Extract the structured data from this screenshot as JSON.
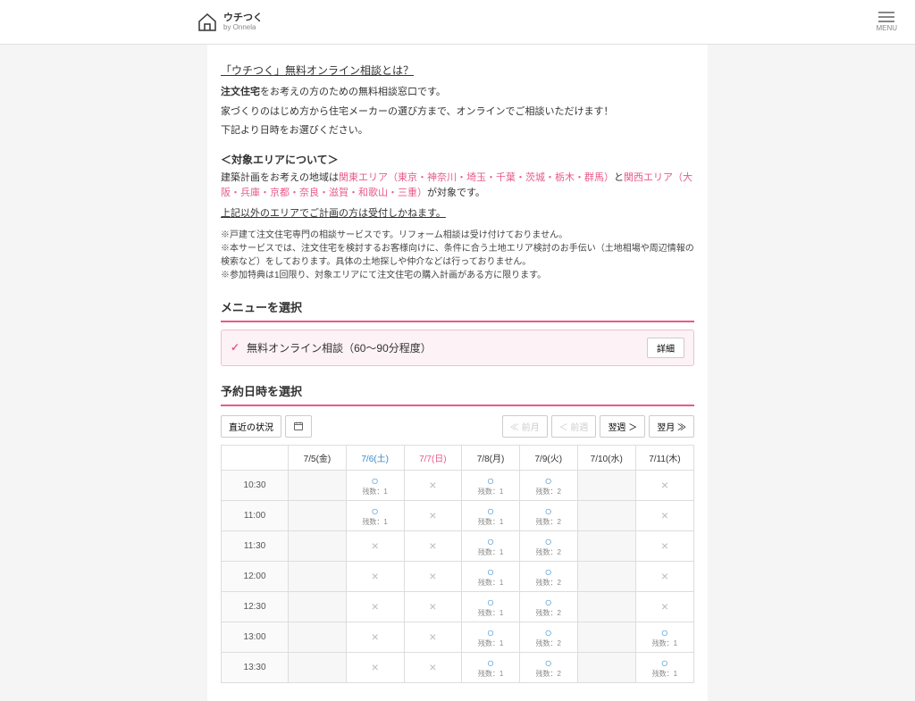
{
  "header": {
    "logo_main": "ウチつく",
    "logo_sub": "by Onnela",
    "menu_label": "MENU"
  },
  "intro": {
    "link": "「ウチつく」無料オンライン相談とは？",
    "line1_prefix": "注文住宅",
    "line1_suffix": "をお考えの方のための無料相談窓口です。",
    "line2": "家づくりのはじめ方から住宅メーカーの選び方まで、オンラインでご相談いただけます！",
    "line3": "下記より日時をお選びください。"
  },
  "area": {
    "heading": "＜対象エリアについて＞",
    "prefix": "建築計画をお考えの地域は",
    "kanto": "関東エリア（東京・神奈川・埼玉・千葉・茨城・栃木・群馬）",
    "mid": "と",
    "kansai": "関西エリア（大阪・兵庫・京都・奈良・滋賀・和歌山・三重）",
    "suffix": "が対象です。",
    "note": "上記以外のエリアでご計画の方は受付しかねます。"
  },
  "notes": {
    "n1": "※戸建て注文住宅専門の相談サービスです。リフォーム相談は受け付けておりません。",
    "n2": "※本サービスでは、注文住宅を検討するお客様向けに、条件に合う土地エリア検討のお手伝い（土地相場や周辺情報の検索など）をしております。具体の土地探しや仲介などは行っておりません。",
    "n3": "※参加特典は1回限り、対象エリアにて注文住宅の購入計画がある方に限ります。"
  },
  "menu": {
    "title": "メニューを選択",
    "item_label": "無料オンライン相談（60〜90分程度）",
    "detail": "詳細"
  },
  "schedule": {
    "title": "予約日時を選択",
    "recent": "直近の状況",
    "prev_month": "≪ 前月",
    "prev_week": "＜ 前週",
    "next_week": "翌週 ＞",
    "next_month": "翌月 ≫",
    "days": [
      {
        "label": "7/5(金)",
        "type": ""
      },
      {
        "label": "7/6(土)",
        "type": "sat"
      },
      {
        "label": "7/7(日)",
        "type": "sun"
      },
      {
        "label": "7/8(月)",
        "type": ""
      },
      {
        "label": "7/9(火)",
        "type": ""
      },
      {
        "label": "7/10(水)",
        "type": ""
      },
      {
        "label": "7/11(木)",
        "type": ""
      }
    ],
    "times": [
      "10:30",
      "11:00",
      "11:30",
      "12:00",
      "12:30",
      "13:00",
      "13:30"
    ],
    "remain_prefix": "残数：",
    "grid": [
      [
        "empty",
        "avail:1",
        "na",
        "avail:1",
        "avail:2",
        "empty",
        "na"
      ],
      [
        "empty",
        "avail:1",
        "na",
        "avail:1",
        "avail:2",
        "empty",
        "na"
      ],
      [
        "empty",
        "na",
        "na",
        "avail:1",
        "avail:2",
        "empty",
        "na"
      ],
      [
        "empty",
        "na",
        "na",
        "avail:1",
        "avail:2",
        "empty",
        "na"
      ],
      [
        "empty",
        "na",
        "na",
        "avail:1",
        "avail:2",
        "empty",
        "na"
      ],
      [
        "empty",
        "na",
        "na",
        "avail:1",
        "avail:2",
        "empty",
        "avail:1"
      ],
      [
        "empty",
        "na",
        "na",
        "avail:1",
        "avail:2",
        "empty",
        "avail:1"
      ]
    ]
  }
}
